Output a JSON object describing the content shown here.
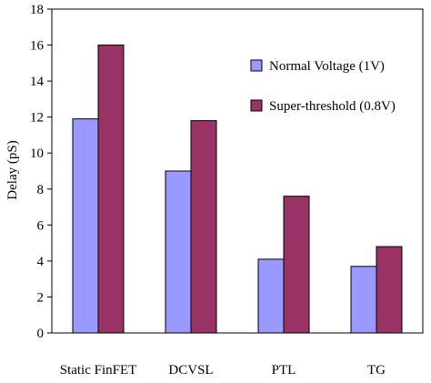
{
  "chart_data": {
    "type": "bar",
    "title": "",
    "xlabel": "",
    "ylabel": "Delay (pS)",
    "ylim": [
      0,
      18
    ],
    "yticks": [
      0,
      2,
      4,
      6,
      8,
      10,
      12,
      14,
      16,
      18
    ],
    "grid": false,
    "legend_position": "top-right",
    "categories": [
      "Static FinFET",
      "DCVSL",
      "PTL",
      "TG"
    ],
    "series": [
      {
        "name": "Normal Voltage (1V)",
        "color": "#9999ff",
        "values": [
          11.9,
          9.0,
          4.1,
          3.7
        ]
      },
      {
        "name": "Super-threshold (0.8V)",
        "color": "#993366",
        "values": [
          16.0,
          11.8,
          7.6,
          4.8
        ]
      }
    ]
  }
}
